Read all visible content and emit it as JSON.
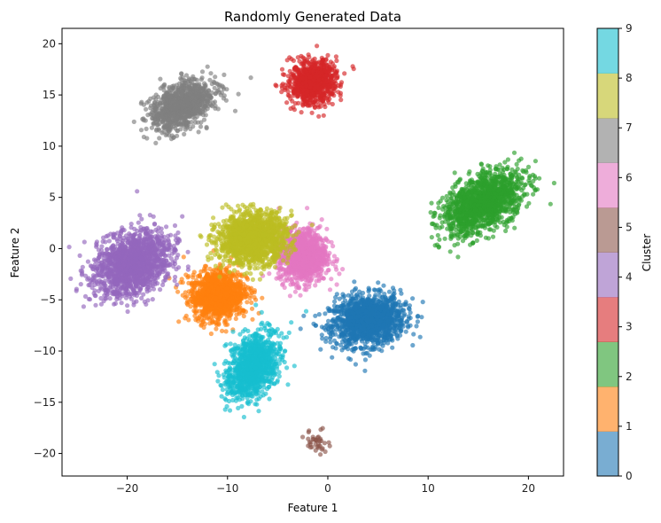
{
  "chart_data": {
    "type": "scatter",
    "title": "Randomly Generated Data",
    "xlabel": "Feature 1",
    "ylabel": "Feature 2",
    "xlim": [
      -26.5,
      23.5
    ],
    "ylim": [
      -22.2,
      21.5
    ],
    "x_ticks": [
      -20,
      -10,
      0,
      10,
      20
    ],
    "y_ticks": [
      -20,
      -15,
      -10,
      -5,
      0,
      5,
      10,
      15,
      20
    ],
    "grid": false,
    "marker_alpha": 0.65,
    "clusters": [
      {
        "label": 0,
        "center": [
          4.0,
          -7.0
        ],
        "spread": [
          1.8,
          1.2
        ],
        "rotation": 0.15,
        "n": 1400,
        "color": "#1f77b4"
      },
      {
        "label": 1,
        "center": [
          -11.0,
          -4.5
        ],
        "spread": [
          1.3,
          1.2
        ],
        "rotation": 0.2,
        "n": 1200,
        "color": "#ff7f0e"
      },
      {
        "label": 2,
        "center": [
          15.5,
          4.5
        ],
        "spread": [
          2.2,
          1.2
        ],
        "rotation": 0.55,
        "n": 1400,
        "color": "#2ca02c"
      },
      {
        "label": 3,
        "center": [
          -1.5,
          16.2
        ],
        "spread": [
          1.2,
          1.0
        ],
        "rotation": 0.3,
        "n": 900,
        "color": "#d62728"
      },
      {
        "label": 4,
        "center": [
          -19.5,
          -1.5
        ],
        "spread": [
          2.0,
          1.4
        ],
        "rotation": 0.5,
        "n": 1500,
        "color": "#9467bd"
      },
      {
        "label": 5,
        "center": [
          -1.0,
          -18.8
        ],
        "spread": [
          0.6,
          0.6
        ],
        "rotation": 0.0,
        "n": 40,
        "color": "#8c564b"
      },
      {
        "label": 6,
        "center": [
          -2.5,
          -0.7
        ],
        "spread": [
          1.2,
          1.3
        ],
        "rotation": 0.0,
        "n": 1100,
        "color": "#e377c2"
      },
      {
        "label": 7,
        "center": [
          -14.5,
          14.0
        ],
        "spread": [
          1.7,
          1.0
        ],
        "rotation": 0.5,
        "n": 1000,
        "color": "#7f7f7f"
      },
      {
        "label": 8,
        "center": [
          -7.5,
          1.0
        ],
        "spread": [
          1.7,
          1.2
        ],
        "rotation": 0.15,
        "n": 1500,
        "color": "#bcbd22"
      },
      {
        "label": 9,
        "center": [
          -7.5,
          -11.5
        ],
        "spread": [
          1.1,
          1.7
        ],
        "rotation": -0.5,
        "n": 1100,
        "color": "#17becf"
      }
    ],
    "colorbar": {
      "label": "Cluster",
      "ticks": [
        0,
        1,
        2,
        3,
        4,
        5,
        6,
        7,
        8,
        9
      ],
      "colors": [
        "#1f77b4",
        "#ff7f0e",
        "#2ca02c",
        "#d62728",
        "#9467bd",
        "#8c564b",
        "#e377c2",
        "#7f7f7f",
        "#bcbd22",
        "#17becf"
      ],
      "alpha": 0.6
    }
  }
}
